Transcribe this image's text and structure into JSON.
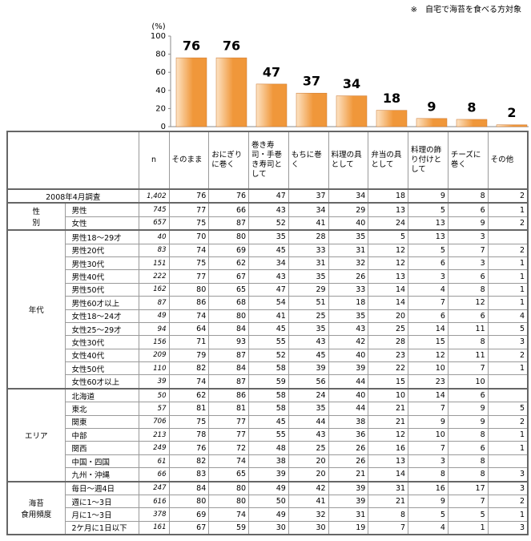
{
  "note": "※　自宅で海苔を食べる方対象",
  "chart_data": {
    "type": "bar",
    "y_label": "(%)",
    "values": [
      76,
      76,
      47,
      37,
      34,
      18,
      9,
      8,
      2
    ],
    "color": "#f0973a",
    "ylim": [
      0,
      100
    ],
    "yticks": [
      0,
      20,
      40,
      60,
      80,
      100
    ]
  },
  "table": {
    "columns": [
      "そのまま",
      "おにぎりに巻く",
      "巻き寿司・手巻き寿司として",
      "もちに巻く",
      "料理の具として",
      "弁当の具として",
      "料理の飾り付けとして",
      "チーズに巻く",
      "その他"
    ],
    "n_header": "n",
    "total": {
      "label": "2008年4月調査",
      "n": "1,402",
      "values": [
        76,
        76,
        47,
        37,
        34,
        18,
        9,
        8,
        2
      ]
    },
    "groups": [
      {
        "label": [
          "性",
          "別"
        ],
        "rows": [
          {
            "label": "男性",
            "n": 745,
            "values": [
              77,
              66,
              43,
              34,
              29,
              13,
              5,
              6,
              1
            ]
          },
          {
            "label": "女性",
            "n": 657,
            "values": [
              75,
              87,
              52,
              41,
              40,
              24,
              13,
              9,
              2
            ]
          }
        ]
      },
      {
        "label": [
          "年代"
        ],
        "rows": [
          {
            "label": "男性18～29才",
            "n": 40,
            "values": [
              70,
              80,
              35,
              28,
              35,
              5,
              13,
              3,
              null
            ]
          },
          {
            "label": "男性20代",
            "n": 83,
            "values": [
              74,
              69,
              45,
              33,
              31,
              12,
              5,
              7,
              2
            ]
          },
          {
            "label": "男性30代",
            "n": 151,
            "values": [
              75,
              62,
              34,
              31,
              32,
              12,
              6,
              3,
              1
            ]
          },
          {
            "label": "男性40代",
            "n": 222,
            "values": [
              77,
              67,
              43,
              35,
              26,
              13,
              3,
              6,
              1
            ]
          },
          {
            "label": "男性50代",
            "n": 162,
            "values": [
              80,
              65,
              47,
              29,
              33,
              14,
              4,
              8,
              1
            ]
          },
          {
            "label": "男性60才以上",
            "n": 87,
            "values": [
              86,
              68,
              54,
              51,
              18,
              14,
              7,
              12,
              1
            ]
          },
          {
            "label": "女性18～24才",
            "n": 49,
            "values": [
              74,
              80,
              41,
              25,
              35,
              20,
              6,
              6,
              4
            ]
          },
          {
            "label": "女性25～29才",
            "n": 94,
            "values": [
              64,
              84,
              45,
              35,
              43,
              25,
              14,
              11,
              5
            ]
          },
          {
            "label": "女性30代",
            "n": 156,
            "values": [
              71,
              93,
              55,
              43,
              42,
              28,
              15,
              8,
              3
            ]
          },
          {
            "label": "女性40代",
            "n": 209,
            "values": [
              79,
              87,
              52,
              45,
              40,
              23,
              12,
              11,
              2
            ]
          },
          {
            "label": "女性50代",
            "n": 110,
            "values": [
              82,
              84,
              58,
              39,
              39,
              22,
              10,
              7,
              1
            ]
          },
          {
            "label": "女性60才以上",
            "n": 39,
            "values": [
              74,
              87,
              59,
              56,
              44,
              15,
              23,
              10,
              null
            ]
          }
        ]
      },
      {
        "label": [
          "エリア"
        ],
        "rows": [
          {
            "label": "北海道",
            "n": 50,
            "values": [
              62,
              86,
              58,
              24,
              40,
              10,
              14,
              6,
              null
            ]
          },
          {
            "label": "東北",
            "n": 57,
            "values": [
              81,
              81,
              58,
              35,
              44,
              21,
              7,
              9,
              5
            ]
          },
          {
            "label": "関東",
            "n": 706,
            "values": [
              75,
              77,
              45,
              44,
              38,
              21,
              9,
              9,
              2
            ]
          },
          {
            "label": "中部",
            "n": 213,
            "values": [
              78,
              77,
              55,
              43,
              36,
              12,
              10,
              8,
              1
            ]
          },
          {
            "label": "関西",
            "n": 249,
            "values": [
              76,
              72,
              48,
              25,
              26,
              16,
              7,
              6,
              1
            ]
          },
          {
            "label": "中国・四国",
            "n": 61,
            "values": [
              82,
              74,
              38,
              20,
              26,
              13,
              3,
              8,
              null
            ]
          },
          {
            "label": "九州・沖縄",
            "n": 66,
            "values": [
              83,
              65,
              39,
              20,
              21,
              14,
              8,
              8,
              3
            ]
          }
        ]
      },
      {
        "label": [
          "海苔",
          "食用頻度"
        ],
        "rows": [
          {
            "label": "毎日～週4日",
            "n": 247,
            "values": [
              84,
              80,
              49,
              42,
              39,
              31,
              16,
              17,
              3
            ]
          },
          {
            "label": "週に1～3日",
            "n": 616,
            "values": [
              80,
              80,
              50,
              41,
              39,
              21,
              9,
              7,
              2
            ]
          },
          {
            "label": "月に1～3日",
            "n": 378,
            "values": [
              69,
              74,
              49,
              32,
              31,
              8,
              5,
              5,
              1
            ]
          },
          {
            "label": "2ケ月に1日以下",
            "n": 161,
            "values": [
              67,
              59,
              30,
              30,
              19,
              7,
              4,
              1,
              3
            ]
          }
        ]
      }
    ]
  }
}
